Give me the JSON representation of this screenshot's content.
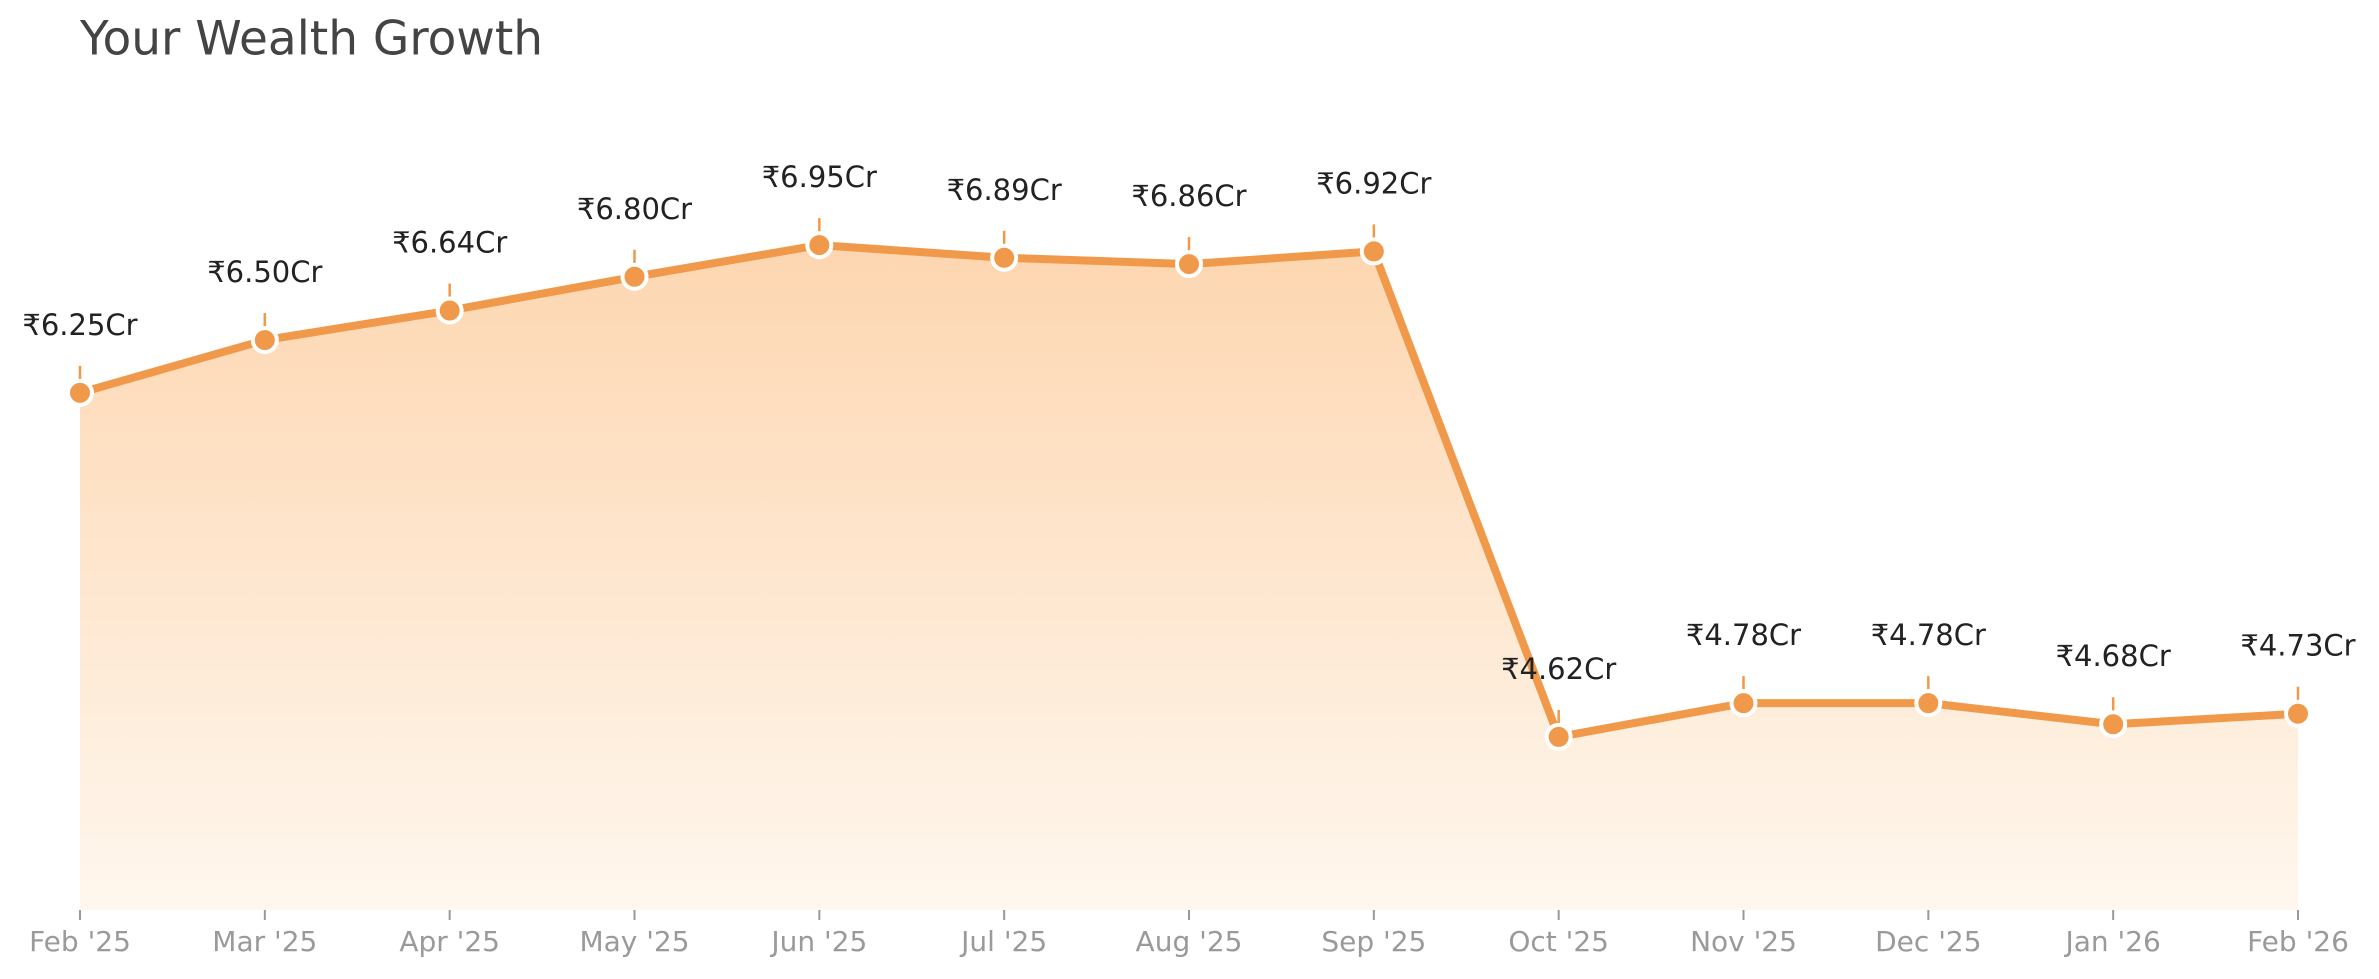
{
  "chart_data": {
    "type": "area-line",
    "title": "Your Wealth Growth",
    "categories": [
      "Feb '25",
      "Mar '25",
      "Apr '25",
      "May '25",
      "Jun '25",
      "Jul '25",
      "Aug '25",
      "Sep '25",
      "Oct '25",
      "Nov '25",
      "Dec '25",
      "Jan '26",
      "Feb '26"
    ],
    "series": [
      {
        "color": "#f0994a",
        "values": [
          6.25,
          6.5,
          6.64,
          6.8,
          6.95,
          6.89,
          6.86,
          6.92,
          4.62,
          4.78,
          4.78,
          4.68,
          4.73
        ],
        "value_labels": [
          "₹6.25Cr",
          "₹6.50Cr",
          "₹6.64Cr",
          "₹6.80Cr",
          "₹6.95Cr",
          "₹6.89Cr",
          "₹6.86Cr",
          "₹6.92Cr",
          "₹4.62Cr",
          "₹4.78Cr",
          "₹4.78Cr",
          "₹4.68Cr",
          "₹4.73Cr"
        ]
      }
    ],
    "ylim": [
      3.8,
      7.5
    ]
  }
}
